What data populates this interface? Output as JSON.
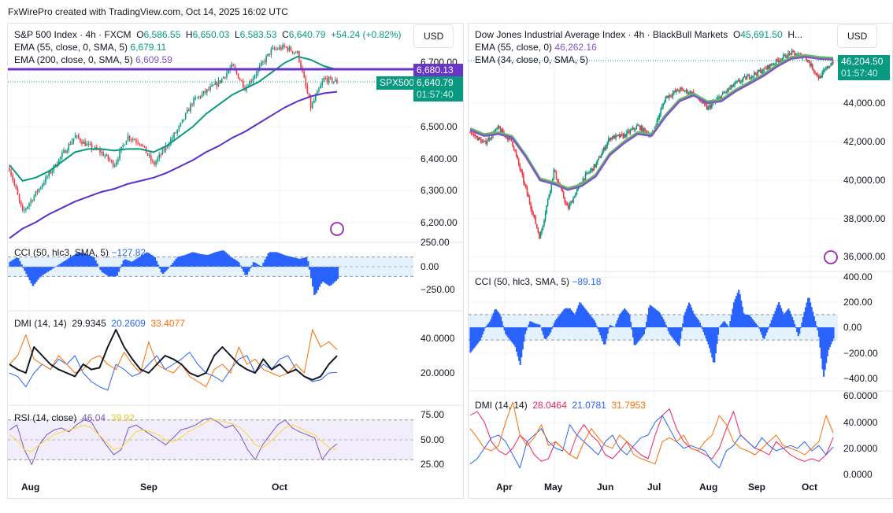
{
  "header": {
    "credit": "FxWirePro created with TradingView.com, Oct 14, 2025 16:02 UTC"
  },
  "colors": {
    "up": "#089981",
    "down": "#f23645",
    "ema55_left": "#089981",
    "ema200_left": "#5b2fc9",
    "level_line": "#6a34c6",
    "cci": "#2962ff",
    "adx": "#131722",
    "di_plus": "#2962ff",
    "di_minus": "#ff6d00",
    "rsi": "#7e57c2",
    "rsi_ma": "#fdd835",
    "dmi_red": "#f7215a"
  },
  "left": {
    "title": "S&P 500 Index · 4h · FXCM",
    "o_label": "O",
    "o": "6,586.55",
    "h_label": "H",
    "h": "6,650.03",
    "l_label": "L",
    "l": "6,583.53",
    "c_label": "C",
    "c": "6,640.79",
    "change": "+54.24 (+0.82%)",
    "ema1_label": "EMA (55, close, 0, SMA, 5)",
    "ema1_value": "6,679.11",
    "ema2_label": "EMA (200, close, 0, SMA, 5)",
    "ema2_value": "6,609.59",
    "currency": "USD",
    "level_tag": "6,680.13",
    "symbol_tag": "SPX500",
    "price_tag": "6,640.79",
    "countdown": "01:57:40",
    "price_ticks": [
      "6,700.00",
      "6,500.00",
      "6,400.00",
      "6,300.00",
      "6,200.00"
    ],
    "cci_label": "CCI (50, hlc3, SMA, 5)",
    "cci_value": "−127.82",
    "cci_ticks": [
      "250.00",
      "0.00",
      "−250.00"
    ],
    "dmi_label": "DMI (14, 14)",
    "dmi_v1": "29.9345",
    "dmi_v2": "20.2609",
    "dmi_v3": "33.4077",
    "dmi_ticks": [
      "40.0000",
      "20.0000"
    ],
    "rsi_label": "RSI (14, close)",
    "rsi_v1": "46.04",
    "rsi_v2": "39.92",
    "rsi_ticks": [
      "75.00",
      "50.00",
      "25.00"
    ],
    "time_ticks": [
      "Aug",
      "Sep",
      "Oct"
    ]
  },
  "right": {
    "title": "Dow Jones Industrial Average Index · 4h · BlackBull Markets",
    "o_label": "O",
    "o": "45,691.50",
    "more": "H...",
    "ema1_label": "EMA (55, close, 0)",
    "ema1_value": "46,262.16",
    "ema2_label": "EMA (34, close, 0, SMA, 5)",
    "currency": "USD",
    "price_tag": "46,204.50",
    "countdown": "01:57:40",
    "price_ticks": [
      "44,000.00",
      "42,000.00",
      "40,000.00",
      "38,000.00",
      "36,000.00"
    ],
    "cci_label": "CCI (50, hlc3, SMA, 5)",
    "cci_value": "−89.18",
    "cci_ticks": [
      "400.00",
      "200.00",
      "0.00",
      "−200.00",
      "−400.00"
    ],
    "dmi_label": "DMI (14, 14)",
    "dmi_v1": "28.0464",
    "dmi_v2": "21.0781",
    "dmi_v3": "31.7953",
    "dmi_ticks": [
      "60.0000",
      "40.0000",
      "20.0000",
      "0.0000"
    ],
    "time_ticks": [
      "Apr",
      "May",
      "Jun",
      "Jul",
      "Aug",
      "Sep",
      "Oct"
    ]
  },
  "chart_data": [
    {
      "type": "candlestick",
      "title": "S&P 500 Index · 4h · FXCM",
      "x_range": [
        "late Jul 2025",
        "Oct 14 2025"
      ],
      "ylim": [
        6150,
        6800
      ],
      "close": [
        6370,
        6230,
        6290,
        6350,
        6410,
        6470,
        6440,
        6420,
        6380,
        6470,
        6450,
        6380,
        6440,
        6500,
        6580,
        6610,
        6640,
        6690,
        6620,
        6680,
        6740,
        6750,
        6730,
        6560,
        6650,
        6640.79
      ],
      "ema55": [
        6380,
        6330,
        6340,
        6360,
        6390,
        6420,
        6430,
        6430,
        6425,
        6430,
        6430,
        6420,
        6440,
        6470,
        6500,
        6540,
        6570,
        6600,
        6620,
        6640,
        6670,
        6700,
        6720,
        6710,
        6690,
        6679.11
      ],
      "ema200": [
        6150,
        6180,
        6200,
        6225,
        6245,
        6265,
        6280,
        6295,
        6305,
        6320,
        6330,
        6340,
        6355,
        6375,
        6395,
        6420,
        6440,
        6465,
        6485,
        6510,
        6535,
        6560,
        6580,
        6595,
        6605,
        6609.59
      ],
      "level_line": 6680.13,
      "cci": [
        50,
        100,
        -50,
        -200,
        -100,
        -50,
        0,
        50,
        100,
        150,
        130,
        100,
        -50,
        -100,
        -100,
        80,
        50,
        100,
        150,
        100,
        -80,
        0,
        100,
        120,
        150,
        130,
        120,
        150,
        170,
        100,
        50,
        -100,
        50,
        0,
        150,
        150,
        120,
        100,
        80,
        100,
        -300,
        -150,
        -200,
        -127.82
      ],
      "dmi_adx": [
        25,
        22,
        20,
        35,
        30,
        25,
        22,
        20,
        18,
        25,
        22,
        23,
        35,
        45,
        35,
        28,
        22,
        20,
        25,
        30,
        28,
        25,
        20,
        18,
        20,
        30,
        35,
        30,
        25,
        22,
        20,
        28,
        22,
        25,
        20,
        22,
        18,
        16,
        18,
        25,
        29.93
      ],
      "dmi_plus": [
        20,
        18,
        12,
        20,
        25,
        22,
        28,
        25,
        30,
        20,
        15,
        12,
        10,
        25,
        22,
        18,
        20,
        25,
        30,
        22,
        25,
        28,
        32,
        25,
        20,
        18,
        15,
        22,
        28,
        30,
        20,
        25,
        22,
        28,
        30,
        22,
        18,
        15,
        16,
        20,
        20.26
      ],
      "dmi_minus": [
        25,
        30,
        42,
        28,
        25,
        22,
        30,
        25,
        20,
        22,
        28,
        30,
        25,
        22,
        32,
        25,
        20,
        38,
        25,
        22,
        20,
        25,
        18,
        15,
        12,
        22,
        25,
        20,
        35,
        25,
        28,
        22,
        20,
        18,
        20,
        25,
        20,
        45,
        35,
        38,
        33.41
      ],
      "rsi": [
        60,
        65,
        40,
        25,
        45,
        55,
        60,
        62,
        58,
        65,
        70,
        68,
        55,
        45,
        35,
        40,
        62,
        65,
        60,
        55,
        50,
        45,
        52,
        60,
        62,
        65,
        70,
        72,
        68,
        62,
        65,
        55,
        40,
        30,
        45,
        55,
        65,
        70,
        62,
        58,
        55,
        52,
        30,
        40,
        46.04
      ],
      "rsi_ma": [
        55,
        50,
        40,
        38,
        45,
        50,
        55,
        58,
        60,
        62,
        65,
        62,
        55,
        48,
        40,
        42,
        50,
        58,
        60,
        58,
        55,
        50,
        48,
        52,
        58,
        62,
        66,
        70,
        70,
        68,
        66,
        62,
        55,
        45,
        42,
        48,
        55,
        62,
        65,
        62,
        58,
        55,
        48,
        42,
        39.92
      ]
    },
    {
      "type": "candlestick",
      "title": "Dow Jones Industrial Average Index · 4h · BlackBull Markets",
      "x_range": [
        "mid Mar 2025",
        "Oct 14 2025"
      ],
      "ylim": [
        35500,
        47000
      ],
      "close": [
        42500,
        41900,
        42700,
        42000,
        39500,
        37000,
        40500,
        38500,
        40000,
        40800,
        42200,
        42300,
        42800,
        42300,
        44300,
        44700,
        44500,
        43700,
        44400,
        45000,
        45400,
        45700,
        46200,
        46600,
        46400,
        45300,
        46204.5
      ],
      "ema55": [
        42600,
        42300,
        42400,
        42200,
        41200,
        40000,
        39800,
        39500,
        39700,
        40200,
        41300,
        41900,
        42400,
        42300,
        43300,
        44100,
        44400,
        44000,
        44100,
        44600,
        45000,
        45400,
        45900,
        46300,
        46400,
        46300,
        46262.16
      ],
      "cci": [
        -200,
        -150,
        -100,
        0,
        50,
        150,
        100,
        -50,
        -100,
        -150,
        -300,
        -50,
        50,
        30,
        20,
        -100,
        -50,
        50,
        100,
        150,
        150,
        100,
        200,
        150,
        100,
        50,
        -50,
        -150,
        20,
        0,
        100,
        150,
        100,
        -150,
        -100,
        -50,
        180,
        150,
        120,
        50,
        -50,
        -100,
        -150,
        100,
        200,
        100,
        50,
        -50,
        -150,
        -300,
        0,
        50,
        0,
        200,
        300,
        100,
        100,
        50,
        0,
        -100,
        0,
        100,
        200,
        100,
        150,
        50,
        -80,
        100,
        250,
        100,
        -50,
        -400,
        -180,
        -89.18
      ],
      "dmi_red": [
        45,
        48,
        40,
        25,
        18,
        15,
        20,
        30,
        25,
        15,
        10,
        12,
        25,
        20,
        15,
        30,
        38,
        30,
        25,
        15,
        12,
        18,
        25,
        20,
        15,
        12,
        30,
        45,
        50,
        35,
        25,
        20,
        18,
        15,
        12,
        20,
        35,
        48,
        30,
        25,
        20,
        18,
        15,
        25,
        20,
        15,
        12,
        10,
        12,
        10,
        15,
        28.05
      ],
      "dmi_blue": [
        8,
        12,
        20,
        28,
        30,
        25,
        15,
        5,
        25,
        30,
        35,
        25,
        20,
        18,
        38,
        30,
        25,
        20,
        15,
        25,
        30,
        20,
        15,
        22,
        28,
        30,
        40,
        45,
        35,
        25,
        20,
        22,
        20,
        18,
        10,
        5,
        18,
        22,
        30,
        25,
        20,
        28,
        22,
        18,
        20,
        22,
        20,
        25,
        18,
        22,
        15,
        21.08
      ],
      "dmi_orange": [
        35,
        28,
        20,
        18,
        22,
        40,
        55,
        30,
        22,
        28,
        38,
        22,
        25,
        20,
        15,
        12,
        25,
        35,
        28,
        22,
        20,
        30,
        25,
        15,
        12,
        10,
        8,
        25,
        28,
        25,
        30,
        20,
        18,
        25,
        30,
        45,
        38,
        25,
        20,
        18,
        15,
        20,
        25,
        30,
        22,
        20,
        18,
        15,
        20,
        25,
        45,
        31.8
      ]
    }
  ]
}
